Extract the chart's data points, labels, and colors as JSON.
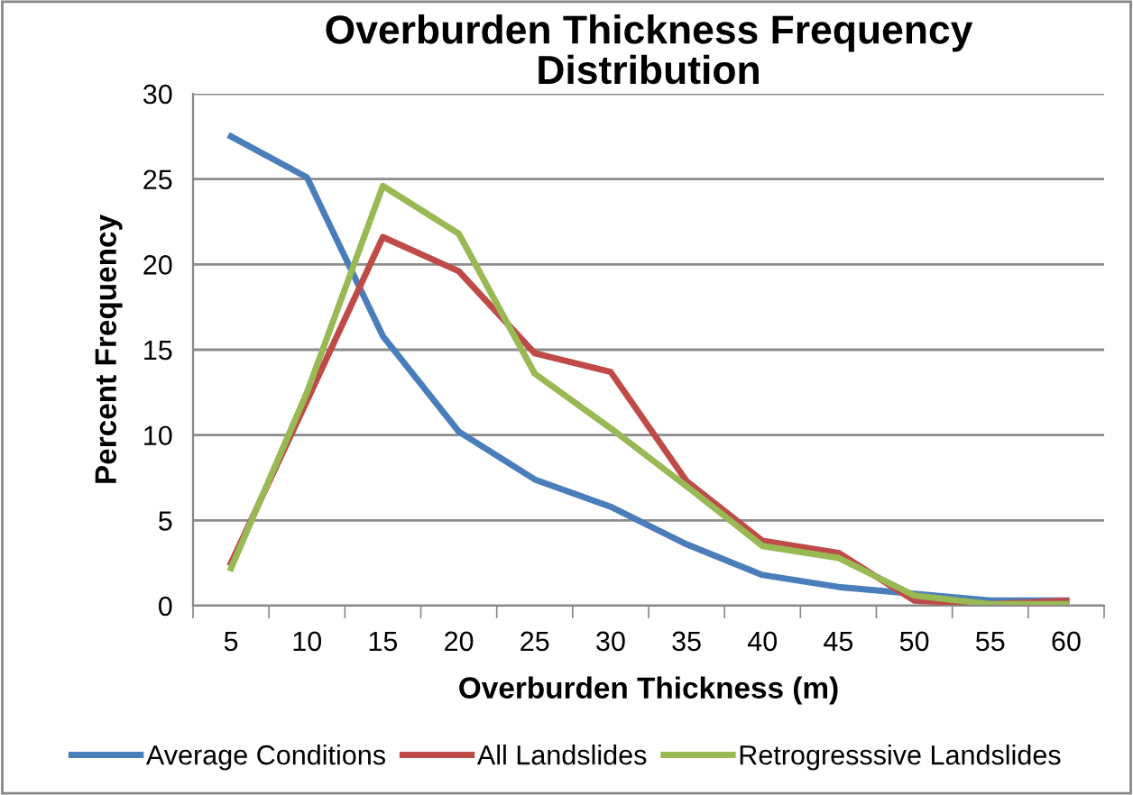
{
  "chart_data": {
    "type": "line",
    "title": "Overburden Thickness Frequency\nDistribution",
    "xlabel": "Overburden Thickness (m)",
    "ylabel": "Percent Frequency",
    "categories": [
      "5",
      "10",
      "15",
      "20",
      "25",
      "30",
      "35",
      "40",
      "45",
      "50",
      "55",
      "60"
    ],
    "series": [
      {
        "name": "Average Conditions",
        "color": "#4a7ebb",
        "values": [
          27.5,
          25.1,
          15.8,
          10.2,
          7.4,
          5.8,
          3.6,
          1.8,
          1.1,
          0.7,
          0.3,
          0.3
        ]
      },
      {
        "name": "All Landslides",
        "color": "#be4b48",
        "values": [
          2.5,
          12,
          21.6,
          19.6,
          14.8,
          13.7,
          7.3,
          3.8,
          3.1,
          0.3,
          0.1,
          0.3
        ]
      },
      {
        "name": "Retrogresssive Landslides",
        "color": "#98b954",
        "values": [
          2.2,
          12.5,
          24.6,
          21.8,
          13.6,
          10.4,
          7.0,
          3.5,
          2.8,
          0.6,
          0.1,
          0.1
        ]
      }
    ],
    "ylim": [
      0,
      30
    ],
    "yticks": [
      0,
      5,
      10,
      15,
      20,
      25,
      30
    ],
    "grid": "y",
    "legend": "bottom",
    "marker": "none",
    "line_style": "solid"
  }
}
